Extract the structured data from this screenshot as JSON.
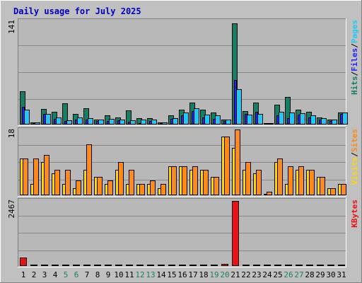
{
  "chart_data": {
    "type": "bar",
    "title": "Daily usage for July 2025",
    "colors": {
      "hits": "#128064",
      "files": "#2222ff",
      "pages": "#20c8f8",
      "visits": "#ffd800",
      "sites": "#ff8a1a",
      "kbytes": "#ee1010",
      "title": "#0000c0",
      "weekend_day": "#1a8060"
    },
    "days": [
      "1",
      "2",
      "3",
      "4",
      "5",
      "6",
      "7",
      "8",
      "9",
      "10",
      "11",
      "12",
      "13",
      "14",
      "15",
      "16",
      "17",
      "18",
      "19",
      "20",
      "21",
      "22",
      "23",
      "24",
      "25",
      "26",
      "27",
      "28",
      "29",
      "30",
      "31"
    ],
    "weekend_days": [
      "5",
      "6",
      "12",
      "13",
      "19",
      "20",
      "26",
      "27"
    ],
    "panels": [
      {
        "id": "hits_files_pages",
        "ymax_label": "141",
        "ymax": 141,
        "legend": [
          {
            "label": "Hits",
            "color_key": "hits"
          },
          {
            "label": "/",
            "color_key": null
          },
          {
            "label": "Files",
            "color_key": "files"
          },
          {
            "label": "/",
            "color_key": null
          },
          {
            "label": "Pages",
            "color_key": "pages"
          }
        ],
        "series": [
          {
            "name": "Hits",
            "color_key": "hits",
            "values": [
              45,
              3,
              21,
              17,
              29,
              14,
              22,
              7,
              12,
              10,
              19,
              9,
              9,
              3,
              12,
              20,
              30,
              20,
              16,
              7,
              137,
              18,
              30,
              1,
              27,
              37,
              20,
              17,
              10,
              7,
              16
            ]
          },
          {
            "name": "Files",
            "color_key": "files",
            "values": [
              24,
              1,
              14,
              8,
              5,
              7,
              7,
              5,
              5,
              6,
              4,
              2,
              5,
              2,
              8,
              12,
              18,
              10,
              8,
              5,
              60,
              14,
              17,
              0,
              12,
              9,
              13,
              10,
              7,
              5,
              14
            ]
          },
          {
            "name": "Pages",
            "color_key": "pages",
            "values": [
              20,
              3,
              14,
              10,
              6,
              10,
              9,
              7,
              8,
              7,
              6,
              7,
              7,
              3,
              9,
              16,
              22,
              13,
              12,
              7,
              48,
              13,
              14,
              1,
              17,
              16,
              15,
              12,
              9,
              7,
              16
            ]
          }
        ]
      },
      {
        "id": "visits_sites",
        "ymax_label": "18",
        "ymax": 18,
        "legend": [
          {
            "label": "Visits",
            "color_key": "visits"
          },
          {
            "label": "/",
            "color_key": null
          },
          {
            "label": "Sites",
            "color_key": "sites"
          }
        ],
        "series": [
          {
            "name": "Visits",
            "color_key": "visits",
            "values": [
              10,
              3,
              9,
              6,
              3,
              2,
              7,
              5,
              3,
              7,
              3,
              3,
              3,
              2,
              8,
              8,
              7,
              7,
              5,
              16,
              13,
              7,
              6,
              0,
              9,
              3,
              7,
              7,
              5,
              2,
              3
            ]
          },
          {
            "name": "Sites",
            "color_key": "sites",
            "values": [
              10,
              10,
              11,
              7,
              7,
              4,
              14,
              5,
              4,
              9,
              7,
              3,
              4,
              3,
              8,
              8,
              8,
              7,
              5,
              16,
              18,
              9,
              7,
              1,
              10,
              8,
              8,
              7,
              5,
              2,
              3
            ]
          }
        ]
      },
      {
        "id": "kbytes",
        "ymax_label": "2467",
        "ymax": 2467,
        "legend": [
          {
            "label": "KBytes",
            "color_key": "kbytes"
          }
        ],
        "series": [
          {
            "name": "KBytes",
            "color_key": "kbytes",
            "values": [
              310,
              0,
              0,
              0,
              0,
              0,
              0,
              0,
              0,
              0,
              0,
              0,
              0,
              0,
              0,
              0,
              0,
              0,
              0,
              70,
              2440,
              0,
              0,
              0,
              0,
              0,
              0,
              0,
              0,
              0,
              0
            ]
          }
        ]
      }
    ]
  }
}
